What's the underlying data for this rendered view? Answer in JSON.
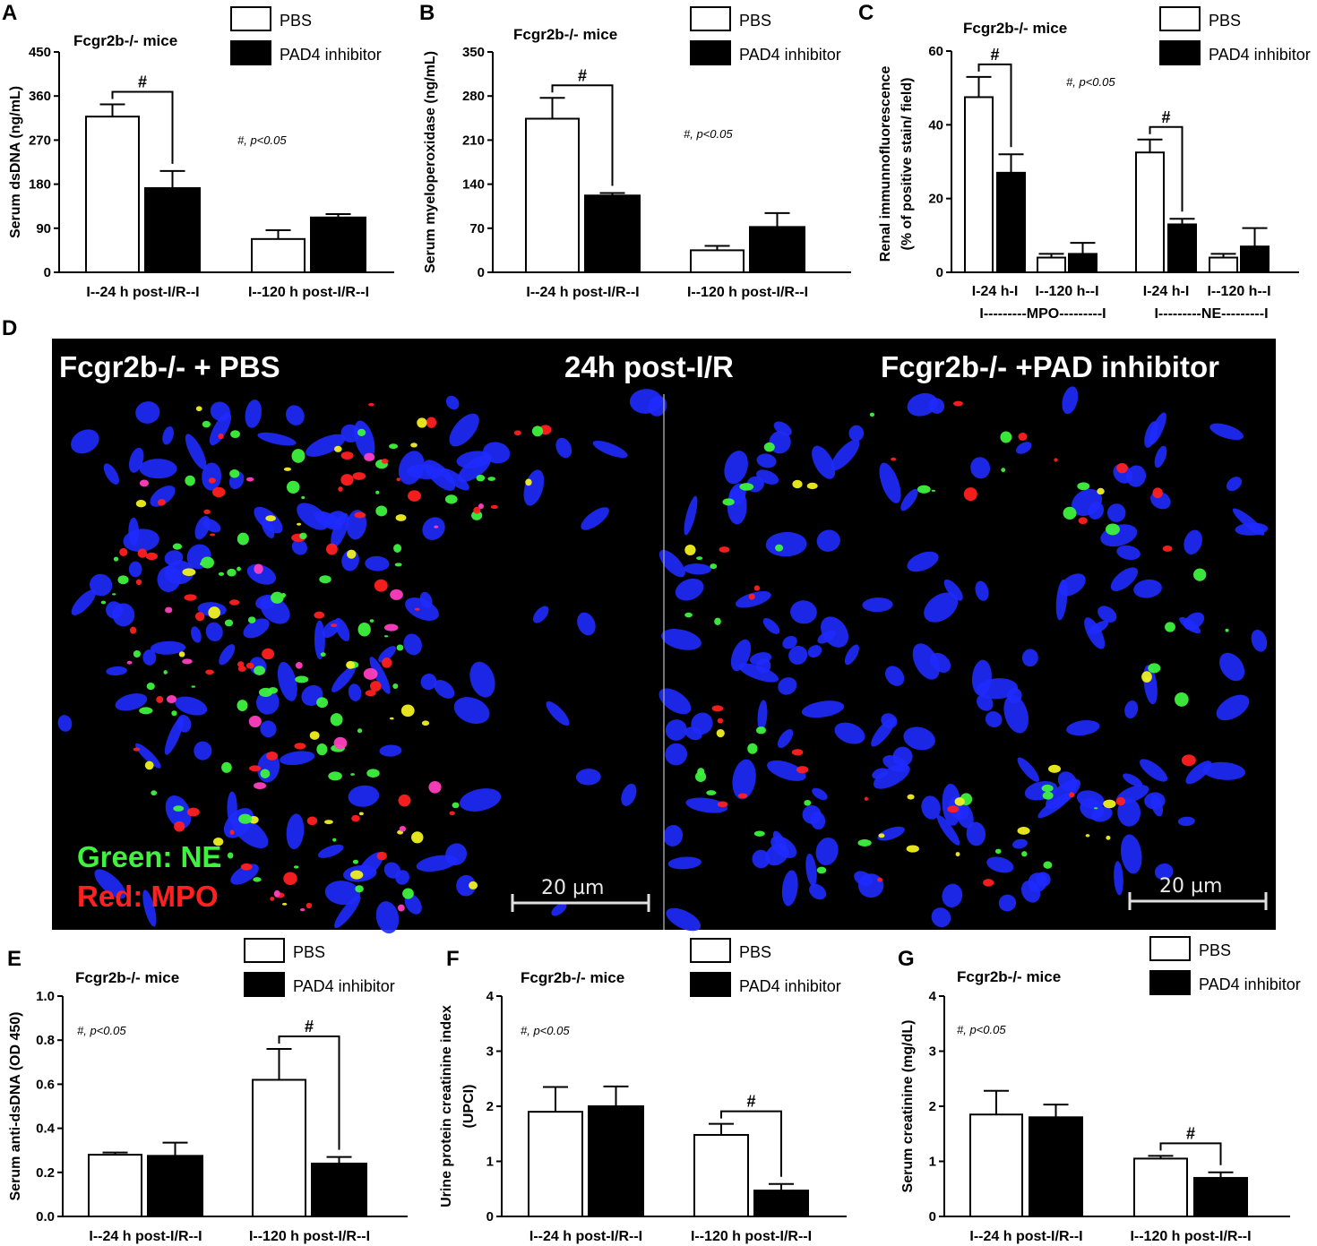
{
  "chart_data": [
    {
      "panel": "A",
      "type": "bar",
      "title": "Fcgr2b-/- mice",
      "ylabel": "Serum dsDNA (ng/mL)",
      "ylim": [
        0,
        450
      ],
      "yticks": [
        0,
        90,
        180,
        270,
        360,
        450
      ],
      "categories": [
        "I--24 h post-I/R--I",
        "I--120 h post-I/R--I"
      ],
      "series": [
        {
          "name": "PBS",
          "values": [
            318,
            68
          ],
          "errors": [
            25,
            18
          ]
        },
        {
          "name": "PAD4 inhibitor",
          "values": [
            172,
            112
          ],
          "errors": [
            35,
            7
          ]
        }
      ],
      "legend": "top-right",
      "annotation": "#, p<0.05",
      "significance": [
        {
          "group": 0,
          "label": "#"
        }
      ]
    },
    {
      "panel": "B",
      "type": "bar",
      "title": "Fcgr2b-/- mice",
      "ylabel": "Serum myeloperoxidase (ng/mL)",
      "ylim": [
        0,
        350
      ],
      "yticks": [
        0,
        70,
        140,
        210,
        280,
        350
      ],
      "categories": [
        "I--24 h post-I/R--I",
        "I--120 h post-I/R--I"
      ],
      "series": [
        {
          "name": "PBS",
          "values": [
            244,
            35
          ],
          "errors": [
            33,
            7
          ]
        },
        {
          "name": "PAD4 inhibitor",
          "values": [
            122,
            72
          ],
          "errors": [
            4,
            22
          ]
        }
      ],
      "legend": "top-right",
      "annotation": "#, p<0.05",
      "significance": [
        {
          "group": 0,
          "label": "#"
        }
      ]
    },
    {
      "panel": "C",
      "type": "bar",
      "title": "Fcgr2b-/- mice",
      "ylabel": "Renal immunnofluorescence (% of positive stain/ field)",
      "ylim": [
        0,
        60
      ],
      "yticks": [
        0,
        20,
        40,
        60
      ],
      "categories": [
        "I-24 h-I",
        "I--120 h--I",
        "I-24 h-I",
        "I--120 h--I"
      ],
      "group_labels": [
        "I---------MPO---------I",
        "I---------NE---------I"
      ],
      "series": [
        {
          "name": "PBS",
          "values": [
            47.5,
            4,
            32.5,
            4
          ],
          "errors": [
            5.5,
            1,
            3.5,
            1
          ]
        },
        {
          "name": "PAD4 inhibitor",
          "values": [
            27,
            5,
            13,
            7
          ],
          "errors": [
            5,
            3,
            1.5,
            5
          ]
        }
      ],
      "legend": "top-right",
      "annotation": "#, p<0.05",
      "significance": [
        {
          "group": 0,
          "label": "#"
        },
        {
          "group": 2,
          "label": "#"
        }
      ]
    },
    {
      "panel": "E",
      "type": "bar",
      "title": "Fcgr2b-/- mice",
      "ylabel": "Serum anti-dsDNA (OD 450)",
      "ylim": [
        0,
        1.0
      ],
      "yticks": [
        "0.0",
        "0.2",
        "0.4",
        "0.6",
        "0.8",
        "1.0"
      ],
      "categories": [
        "I--24 h post-I/R--I",
        "I--120 h post-I/R--I"
      ],
      "series": [
        {
          "name": "PBS",
          "values": [
            0.28,
            0.62
          ],
          "errors": [
            0.01,
            0.14
          ]
        },
        {
          "name": "PAD4 inhibitor",
          "values": [
            0.275,
            0.24
          ],
          "errors": [
            0.06,
            0.03
          ]
        }
      ],
      "legend": "top-right",
      "annotation": "#, p<0.05",
      "significance": [
        {
          "group": 1,
          "label": "#"
        }
      ]
    },
    {
      "panel": "F",
      "type": "bar",
      "title": "Fcgr2b-/- mice",
      "ylabel": "Urine protein creatinine index (UPCI)",
      "ylim": [
        0,
        4
      ],
      "yticks": [
        0,
        1,
        2,
        3,
        4
      ],
      "categories": [
        "I--24 h post-I/R--I",
        "I--120 h post-I/R--I"
      ],
      "series": [
        {
          "name": "PBS",
          "values": [
            1.9,
            1.48
          ],
          "errors": [
            0.45,
            0.2
          ]
        },
        {
          "name": "PAD4 inhibitor",
          "values": [
            2.0,
            0.47
          ],
          "errors": [
            0.36,
            0.12
          ]
        }
      ],
      "legend": "top-right",
      "annotation": "#, p<0.05",
      "significance": [
        {
          "group": 1,
          "label": "#"
        }
      ]
    },
    {
      "panel": "G",
      "type": "bar",
      "title": "Fcgr2b-/- mice",
      "ylabel": "Serum creatinine (mg/dL)",
      "ylim": [
        0,
        4
      ],
      "yticks": [
        0,
        1,
        2,
        3,
        4
      ],
      "categories": [
        "I--24 h post-I/R--I",
        "I--120 h post-I/R--I"
      ],
      "series": [
        {
          "name": "PBS",
          "values": [
            1.85,
            1.05
          ],
          "errors": [
            0.43,
            0.05
          ]
        },
        {
          "name": "PAD4 inhibitor",
          "values": [
            1.8,
            0.7
          ],
          "errors": [
            0.23,
            0.1
          ]
        }
      ],
      "legend": "top-right",
      "annotation": "#, p<0.05",
      "significance": [
        {
          "group": 1,
          "label": "#"
        }
      ]
    }
  ],
  "micrograph": {
    "panel": "D",
    "left_title": "Fcgr2b-/- + PBS",
    "center_title": "24h post-I/R",
    "right_title": "Fcgr2b-/- +PAD inhibitor",
    "legend_green": "Green: NE",
    "legend_red": "Red: MPO",
    "scale_bar": "20 µm",
    "colors": {
      "green": "#3ef23e",
      "red": "#ff2020",
      "blue": "#1f2bff",
      "background": "#000000"
    }
  },
  "colors": {
    "pbs_fill": "#ffffff",
    "pad4_fill": "#000000",
    "stroke": "#000000"
  }
}
